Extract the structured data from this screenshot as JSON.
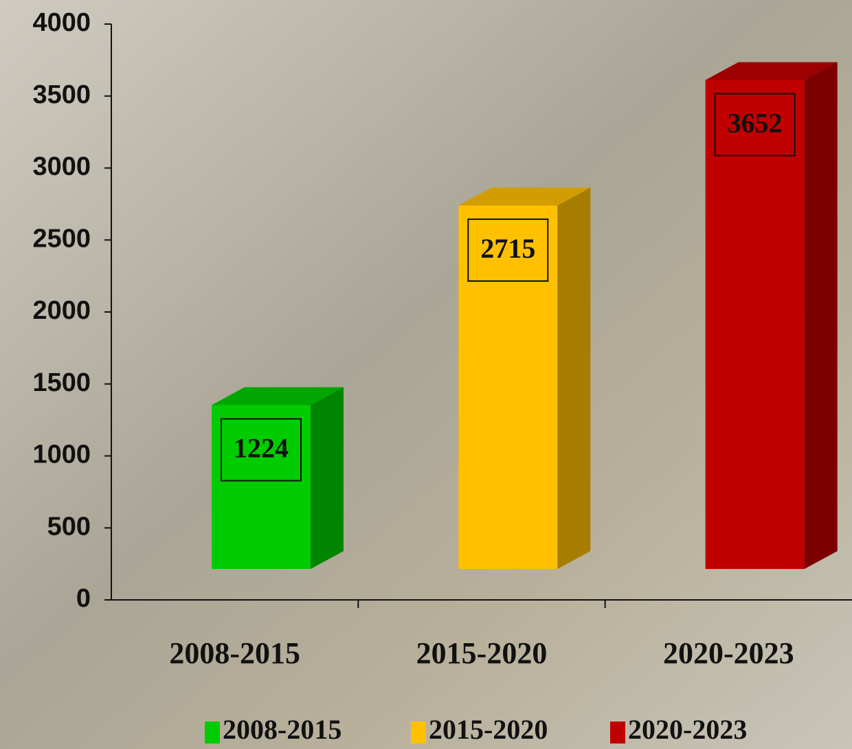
{
  "chart_data": {
    "type": "bar3d",
    "categories": [
      "2008-2015",
      "2015-2020",
      "2020-2023"
    ],
    "values": [
      1224,
      2715,
      3652
    ],
    "colors": [
      "#00cc00",
      "#ffc000",
      "#c00000"
    ],
    "ylim": [
      0,
      4000
    ],
    "yticks": [
      0,
      500,
      1000,
      1500,
      2000,
      2500,
      3000,
      3500,
      4000
    ],
    "legend": "bottom"
  }
}
